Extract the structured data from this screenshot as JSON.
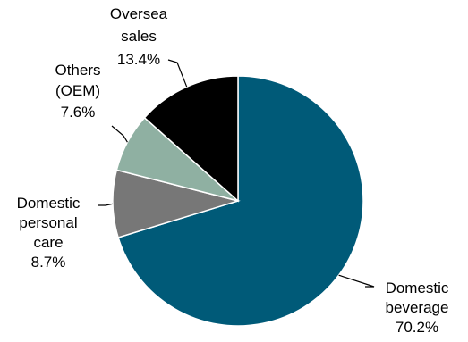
{
  "chart_data": {
    "type": "pie",
    "title": "",
    "slices": [
      {
        "label_lines": [
          "Domestic",
          "beverage"
        ],
        "value": 70.2,
        "value_label": "70.2%",
        "color": "#005a78"
      },
      {
        "label_lines": [
          "Domestic",
          "personal",
          "care"
        ],
        "value": 8.7,
        "value_label": "8.7%",
        "color": "#777777"
      },
      {
        "label_lines": [
          "Others",
          "(OEM)"
        ],
        "value": 7.6,
        "value_label": "7.6%",
        "color": "#8fb0a2"
      },
      {
        "label_lines": [
          "Oversea",
          "sales"
        ],
        "value": 13.4,
        "value_label": "13.4%",
        "color": "#000000"
      }
    ],
    "start_angle_deg": 0,
    "direction": "clockwise",
    "slice_border": "#ffffff",
    "label_style": "outside with leader lines"
  }
}
